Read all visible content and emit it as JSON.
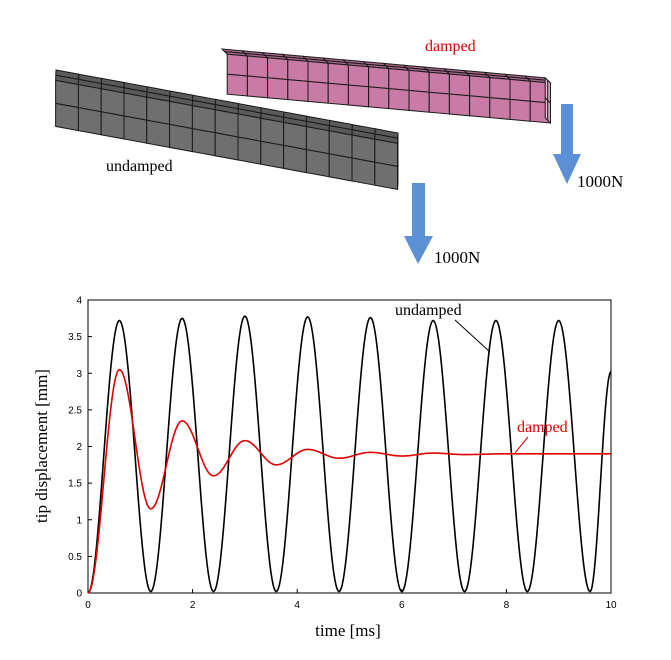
{
  "scene": {
    "undamped_label": "undamped",
    "damped_label": "damped",
    "force_label_undamped": "1000N",
    "force_label_damped": "1000N",
    "colors": {
      "undamped_beam_front": "#6f6f6f",
      "undamped_beam_top": "#5a5a5a",
      "undamped_beam_end": "#d9d9d9",
      "damped_beam_front": "#c97aa5",
      "damped_beam_top": "#a8668b",
      "damped_beam_end": "#e8b8d1",
      "arrow": "#5b8fd6",
      "damped_text": "#e00000"
    }
  },
  "chart_data": {
    "type": "line",
    "xlabel": "time [ms]",
    "ylabel": "tip displacement [mm]",
    "xlim": [
      0,
      10
    ],
    "ylim": [
      0,
      4
    ],
    "xticks": [
      "0",
      "2",
      "4",
      "6",
      "8",
      "10"
    ],
    "yticks": [
      "0",
      "0.5",
      "1",
      "1.5",
      "2",
      "2.5",
      "3",
      "3.5",
      "4"
    ],
    "grid": false,
    "series": [
      {
        "name": "undamped",
        "color": "#000000",
        "label": "undamped",
        "description_points": {
          "x": [
            0,
            0.6,
            1.2,
            1.8,
            2.4,
            3.0,
            3.6,
            4.2,
            4.8,
            5.4,
            6.0,
            6.6,
            7.2,
            7.8,
            8.4,
            9.0,
            9.6,
            10.0
          ],
          "y": [
            0,
            3.72,
            0.02,
            3.75,
            0.02,
            3.78,
            0.02,
            3.77,
            0.02,
            3.76,
            0.02,
            3.72,
            0.02,
            3.72,
            0.02,
            3.72,
            0.02,
            3.02
          ]
        }
      },
      {
        "name": "damped",
        "color": "#e00000",
        "label": "damped",
        "description_points": {
          "x": [
            0,
            0.6,
            1.2,
            1.8,
            2.4,
            3.0,
            3.6,
            4.2,
            4.8,
            5.4,
            6.0,
            6.6,
            7.2,
            8.0,
            9.0,
            10.0
          ],
          "y": [
            0,
            3.05,
            1.15,
            2.35,
            1.6,
            2.08,
            1.75,
            1.96,
            1.84,
            1.92,
            1.87,
            1.91,
            1.89,
            1.9,
            1.9,
            1.9
          ]
        }
      }
    ]
  }
}
